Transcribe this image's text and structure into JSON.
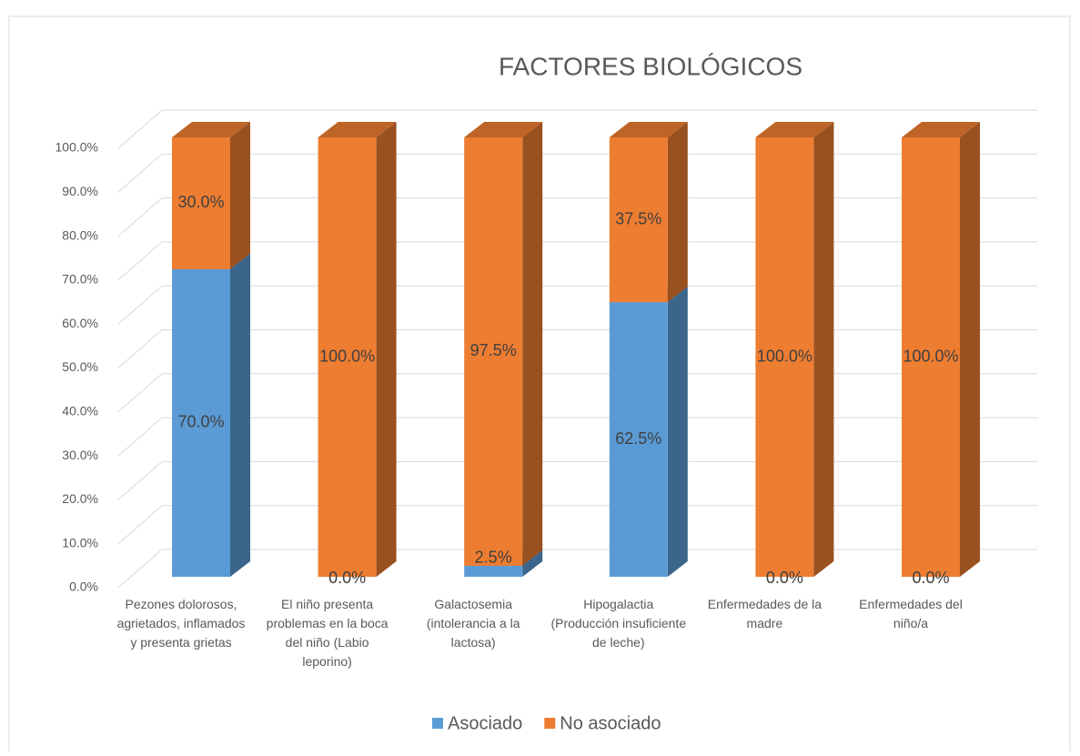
{
  "chart_data": {
    "type": "bar3d_stacked",
    "title": "FACTORES BIOLÓGICOS",
    "categories": [
      "Pezones dolorosos, agrietados, inflamados y presenta grietas",
      "El niño presenta problemas en la boca del niño (Labio leporino)",
      "Galactosemia (intolerancia a la lactosa)",
      "Hipogalactia (Producción insuficiente de leche)",
      "Enfermedades de la madre",
      "Enfermedades  del niño/a"
    ],
    "series": [
      {
        "name": "Asociado",
        "color": "#5b9bd5",
        "values": [
          70,
          0,
          2.5,
          62.5,
          0,
          0
        ],
        "value_labels": [
          "70.0%",
          "0.0%",
          "2.5%",
          "62.5%",
          "0.0%",
          "0.0%"
        ]
      },
      {
        "name": "No asociado",
        "color": "#ed7d31",
        "values": [
          30,
          100,
          97.5,
          37.5,
          100,
          100
        ],
        "value_labels": [
          "30.0%",
          "100.0%",
          "97.5%",
          "37.5%",
          "100.0%",
          "100.0%"
        ]
      }
    ],
    "ylim": [
      0,
      100
    ],
    "yticks": [
      {
        "value": 0,
        "label": "0.0%"
      },
      {
        "value": 10,
        "label": "10.0%"
      },
      {
        "value": 20,
        "label": "20.0%"
      },
      {
        "value": 30,
        "label": "30.0%"
      },
      {
        "value": 40,
        "label": "40.0%"
      },
      {
        "value": 50,
        "label": "50.0%"
      },
      {
        "value": 60,
        "label": "60.0%"
      },
      {
        "value": 70,
        "label": "70.0%"
      },
      {
        "value": 80,
        "label": "80.0%"
      },
      {
        "value": 90,
        "label": "90.0%"
      },
      {
        "value": 100,
        "label": "100.0%"
      }
    ],
    "grid": true,
    "legend": "bottom"
  }
}
